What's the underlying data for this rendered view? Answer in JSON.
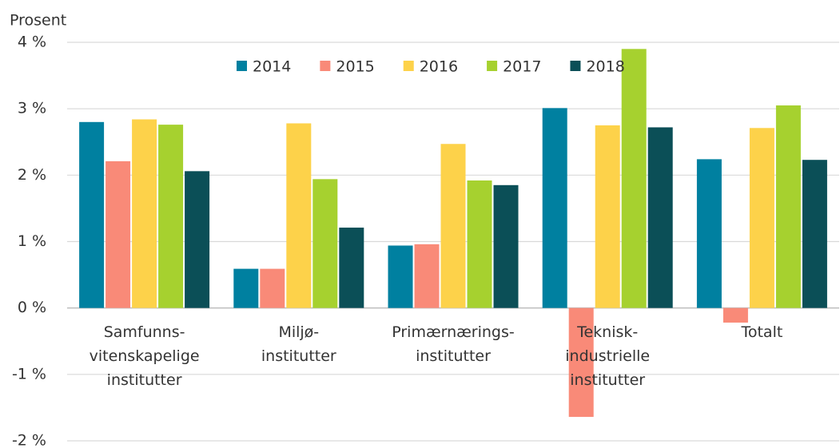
{
  "chart_data": {
    "type": "bar",
    "y_axis_label": "Prosent",
    "categories": [
      "Samfunns-\nvitenskapelige\ninstitutter",
      "Miljø-\ninstitutter",
      "Primærnærings-\ninstitutter",
      "Teknisk-\nindustrielle\ninstitutter",
      "Totalt"
    ],
    "series": [
      {
        "name": "2014",
        "color": "#0080a0",
        "values": [
          2.8,
          0.59,
          0.94,
          3.01,
          2.24
        ]
      },
      {
        "name": "2015",
        "color": "#f98a78",
        "values": [
          2.21,
          0.59,
          0.96,
          -1.64,
          -0.22
        ]
      },
      {
        "name": "2016",
        "color": "#fdd24a",
        "values": [
          2.84,
          2.78,
          2.47,
          2.75,
          2.71
        ]
      },
      {
        "name": "2017",
        "color": "#a6d12f",
        "values": [
          2.76,
          1.94,
          1.92,
          3.9,
          3.05
        ]
      },
      {
        "name": "2018",
        "color": "#0b4f57",
        "values": [
          2.06,
          1.21,
          1.85,
          2.72,
          2.23
        ]
      }
    ],
    "ylim": [
      -2,
      4
    ],
    "yticks": [
      {
        "value": -2,
        "label": "-2 %"
      },
      {
        "value": -1,
        "label": "-1 %"
      },
      {
        "value": 0,
        "label": "0 %"
      },
      {
        "value": 1,
        "label": "1 %"
      },
      {
        "value": 2,
        "label": "2 %"
      },
      {
        "value": 3,
        "label": "3 %"
      },
      {
        "value": 4,
        "label": "4 %"
      }
    ],
    "grid": true,
    "legend": "top"
  }
}
